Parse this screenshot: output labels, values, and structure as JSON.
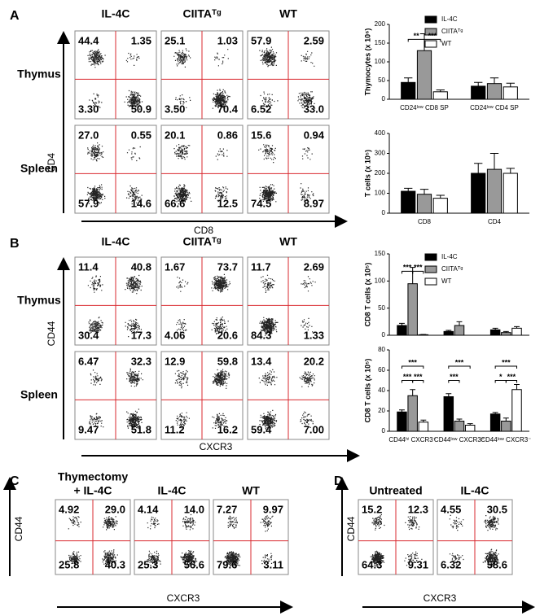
{
  "panels": [
    {
      "letter": "A",
      "columns": [
        [
          "IL-4C"
        ],
        [
          "CIITAᵀᵍ"
        ],
        [
          "WT"
        ]
      ],
      "rows": [
        {
          "label": "Thymus",
          "quadrants": [
            [
              "44.4",
              "1.35",
              "3.30",
              "50.9"
            ],
            [
              "25.1",
              "1.03",
              "3.50",
              "70.4"
            ],
            [
              "57.9",
              "2.59",
              "6.52",
              "33.0"
            ]
          ]
        },
        {
          "label": "Spleen",
          "quadrants": [
            [
              "27.0",
              "0.55",
              "57.9",
              "14.6"
            ],
            [
              "20.1",
              "0.86",
              "66.6",
              "12.5"
            ],
            [
              "15.6",
              "0.94",
              "74.5",
              "8.97"
            ]
          ]
        }
      ],
      "y_label": "CD4",
      "x_label": "CD8"
    },
    {
      "letter": "B",
      "columns": [
        [
          "IL-4C"
        ],
        [
          "CIITAᵀᵍ"
        ],
        [
          "WT"
        ]
      ],
      "rows": [
        {
          "label": "Thymus",
          "quadrants": [
            [
              "11.4",
              "40.8",
              "30.4",
              "17.3"
            ],
            [
              "1.67",
              "73.7",
              "4.06",
              "20.6"
            ],
            [
              "11.7",
              "2.69",
              "84.3",
              "1.33"
            ]
          ]
        },
        {
          "label": "Spleen",
          "quadrants": [
            [
              "6.47",
              "32.3",
              "9.47",
              "51.8"
            ],
            [
              "12.9",
              "59.8",
              "11.2",
              "16.2"
            ],
            [
              "13.4",
              "20.2",
              "59.4",
              "7.00"
            ]
          ]
        }
      ],
      "y_label": "CD44",
      "x_label": "CXCR3"
    },
    {
      "letter": "C",
      "columns": [
        [
          "Thymectomy",
          "+ IL-4C"
        ],
        [
          "IL-4C"
        ],
        [
          "WT"
        ]
      ],
      "rows": [
        {
          "quadrants": [
            [
              "4.92",
              "29.0",
              "25.8",
              "40.3"
            ],
            [
              "4.14",
              "14.0",
              "25.3",
              "56.6"
            ],
            [
              "7.27",
              "9.97",
              "79.6",
              "3.11"
            ]
          ]
        }
      ],
      "y_label": "CD44",
      "x_label": "CXCR3"
    },
    {
      "letter": "D",
      "columns": [
        [
          "Untreated"
        ],
        [
          "IL-4C"
        ]
      ],
      "rows": [
        {
          "quadrants": [
            [
              "15.2",
              "12.3",
              "64.3",
              "9.31"
            ],
            [
              "4.55",
              "30.5",
              "6.32",
              "58.6"
            ]
          ]
        }
      ],
      "y_label": "CD44",
      "x_label": "CXCR3"
    }
  ],
  "chart_data": [
    {
      "type": "bar",
      "y_label": "Thymocytes (x 10⁶)",
      "categories": [
        "CD24ˡᵒʷ CD8 SP",
        "CD24ˡᵒʷ CD4 SP"
      ],
      "series": [
        {
          "name": "IL-4C",
          "color": "#000000",
          "values": [
            45,
            35
          ],
          "errors": [
            12,
            10
          ]
        },
        {
          "name": "CIITAᵀᵍ",
          "color": "#999999",
          "values": [
            130,
            42
          ],
          "errors": [
            45,
            15
          ]
        },
        {
          "name": "WT",
          "color": "#ffffff",
          "values": [
            20,
            33
          ],
          "errors": [
            5,
            10
          ]
        }
      ],
      "ylim": [
        0,
        200
      ],
      "yticks": [
        0,
        50,
        100,
        150,
        200
      ],
      "legend": "top-right",
      "annotations": [
        "**",
        "***"
      ]
    },
    {
      "type": "bar",
      "y_label": "T cells (x 10⁵)",
      "categories": [
        "CD8",
        "CD4"
      ],
      "series": [
        {
          "color": "#000000",
          "values": [
            110,
            200
          ],
          "errors": [
            15,
            50
          ]
        },
        {
          "color": "#999999",
          "values": [
            95,
            220
          ],
          "errors": [
            25,
            80
          ]
        },
        {
          "color": "#ffffff",
          "values": [
            75,
            200
          ],
          "errors": [
            15,
            25
          ]
        }
      ],
      "ylim": [
        0,
        400
      ],
      "yticks": [
        0,
        100,
        200,
        300,
        400
      ]
    },
    {
      "type": "bar",
      "y_label": "CD8 T cells (x 10⁵)",
      "categories": [
        null,
        null,
        null
      ],
      "series": [
        {
          "name": "IL-4C",
          "color": "#000000",
          "values": [
            18,
            7,
            10
          ],
          "errors": [
            4,
            2,
            3
          ]
        },
        {
          "name": "CIITAᵀᵍ",
          "color": "#999999",
          "values": [
            95,
            18,
            5
          ],
          "errors": [
            30,
            7,
            2
          ]
        },
        {
          "name": "WT",
          "color": "#ffffff",
          "values": [
            1,
            0,
            13
          ],
          "errors": [
            0.5,
            0,
            3
          ]
        }
      ],
      "ylim": [
        0,
        150
      ],
      "yticks": [
        0,
        50,
        100,
        150
      ],
      "legend": "top-right",
      "annotations": [
        "***",
        "***"
      ]
    },
    {
      "type": "bar",
      "y_label": "CD8 T cells (x 10⁵)",
      "categories": [
        "CD44ʰⁱ CXCR3⁺",
        "CD44ˡᵒʷ CXCR3⁺",
        "CD44ˡᵒʷ CXCR3⁻"
      ],
      "series": [
        {
          "color": "#000000",
          "values": [
            19,
            34,
            17
          ],
          "errors": [
            2,
            3,
            1.5
          ]
        },
        {
          "color": "#999999",
          "values": [
            35,
            10,
            10
          ],
          "errors": [
            6,
            2,
            3
          ]
        },
        {
          "color": "#ffffff",
          "values": [
            9,
            6,
            41
          ],
          "errors": [
            2,
            1.5,
            5
          ]
        }
      ],
      "ylim": [
        0,
        80
      ],
      "yticks": [
        0,
        20,
        40,
        60,
        80
      ],
      "annotations": [
        "***",
        "***",
        "***",
        "***",
        "***",
        "***",
        "*",
        "***"
      ]
    }
  ]
}
